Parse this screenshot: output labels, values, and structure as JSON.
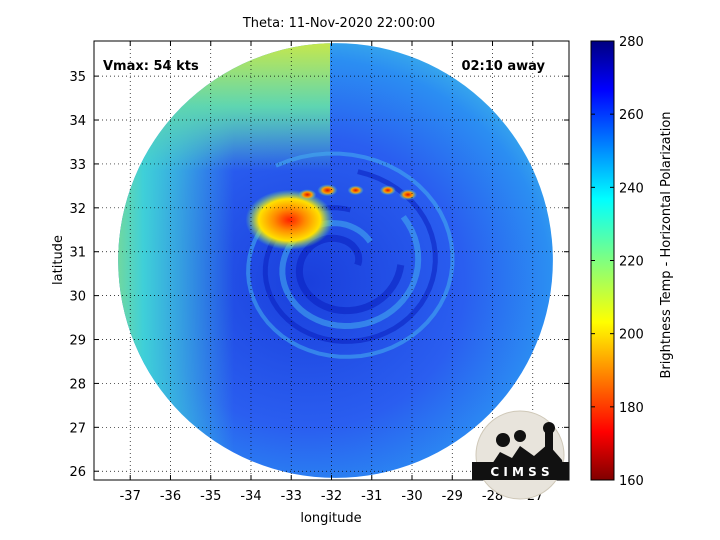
{
  "figure": {
    "title": "Theta: 11-Nov-2020 22:00:00",
    "vmax_label": "Vmax: 54 kts",
    "time_away_label": "02:10 away",
    "logo_text": "C I M S S"
  },
  "chart_data": {
    "type": "heatmap",
    "xlabel": "longitude",
    "ylabel": "latitude",
    "xlim": [
      -37.9,
      -26.1
    ],
    "ylim": [
      25.8,
      35.8
    ],
    "x_ticks": [
      "-37",
      "-36",
      "-35",
      "-34",
      "-33",
      "-32",
      "-31",
      "-30",
      "-29",
      "-28",
      "-27"
    ],
    "x_tick_values": [
      -37,
      -36,
      -35,
      -34,
      -33,
      -32,
      -31,
      -30,
      -29,
      -28,
      -27
    ],
    "y_ticks": [
      "26",
      "27",
      "28",
      "29",
      "30",
      "31",
      "32",
      "33",
      "34",
      "35"
    ],
    "y_tick_values": [
      26,
      27,
      28,
      29,
      30,
      31,
      32,
      33,
      34,
      35
    ],
    "grid": true,
    "colorbar": {
      "label": "Brightness Temp - Horizontal Polarization",
      "range": [
        160,
        280
      ],
      "ticks": [
        "160",
        "180",
        "200",
        "220",
        "240",
        "260",
        "280"
      ],
      "tick_values": [
        160,
        180,
        200,
        220,
        240,
        260,
        280
      ],
      "colormap": "jet"
    },
    "swath": {
      "center_lon": -31.9,
      "center_lat": 30.8,
      "radius_deg": 5.4
    },
    "storm_center": {
      "lon": -31.8,
      "lat": 30.7
    }
  }
}
